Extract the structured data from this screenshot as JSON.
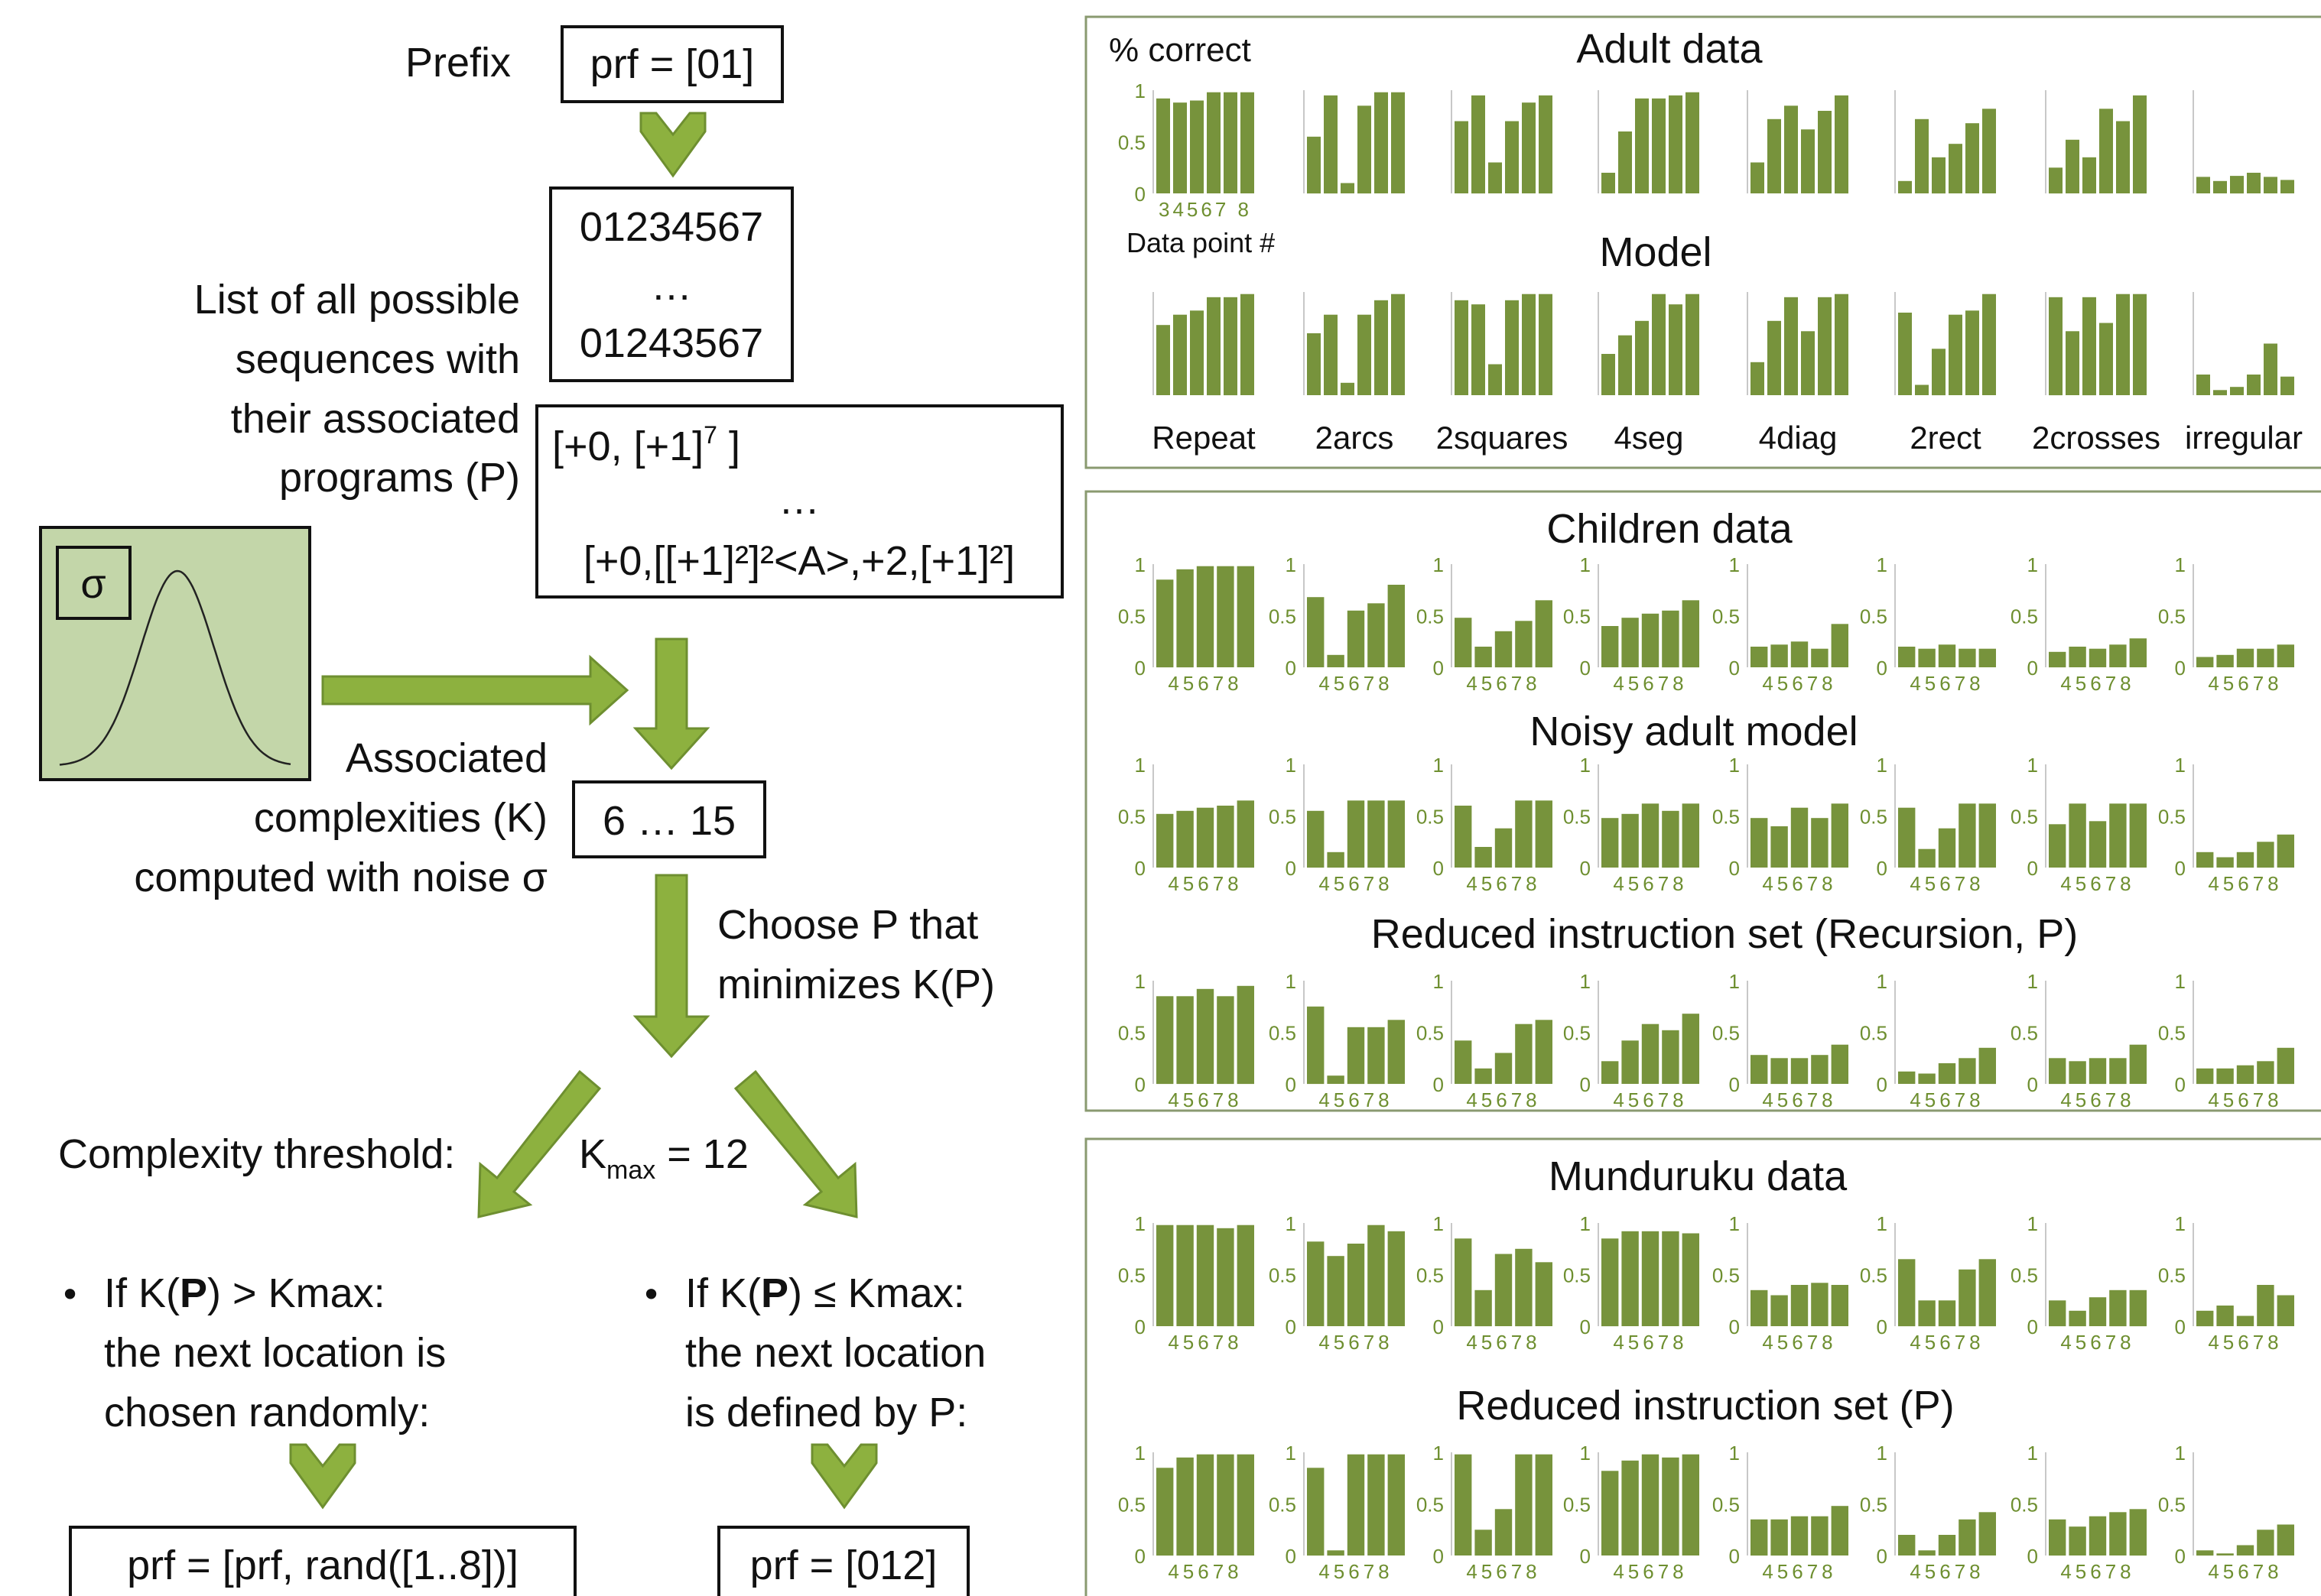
{
  "flow": {
    "prefix_label": "Prefix",
    "prefix_box": "prf = [01]",
    "sequences_box": [
      "01234567",
      "…",
      "01243567"
    ],
    "list_label": [
      "List of all possible",
      "sequences with",
      "their associated",
      "programs (P)"
    ],
    "programs_line1_main": "[+0, [+1]",
    "programs_line1_sup": "7",
    "programs_line1_end": " ]",
    "programs_line2": "…",
    "programs_line3": "[+0,[[+1]²]²<A>,+2,[+1]²]",
    "sigma_label": "σ",
    "complexity_label": [
      "Associated",
      "complexities (K)",
      "computed with noise σ"
    ],
    "complexity_box": "6 … 15",
    "choose_label": [
      "Choose P that",
      "minimizes K(P)"
    ],
    "threshold_label": "Complexity threshold:",
    "kmax_main": "K",
    "kmax_sub": "max",
    "kmax_value": " = 12",
    "left_branch": {
      "bullet": "•",
      "cond_pre": "If K(",
      "cond_bold": "P",
      "cond_post": ") > Kmax:",
      "line2": "the next location is",
      "line3": "chosen randomly:",
      "result": "prf = [prf, rand([1..8])]"
    },
    "right_branch": {
      "bullet": "•",
      "cond_pre": "If K(",
      "cond_bold": "P",
      "cond_post": ") ≤ Kmax:",
      "line2": "the next location",
      "line3": "is defined by P:",
      "result": "prf = [012]"
    }
  },
  "colors": {
    "bar": "#77933c",
    "arrow": "#8db13f",
    "arrow_stroke": "#6e8f30",
    "sigma_bg": "#c3d6a9",
    "frame": "#8a9a70",
    "tick_text": "#6e8f30"
  },
  "panels": {
    "adult": {
      "y_axis_label": "% correct",
      "x_axis_label": "Data point #",
      "x_ticks": "34567 8",
      "y_ticks": [
        "1",
        "0.5",
        "0"
      ],
      "categories": [
        "Repeat",
        "2arcs",
        "2squares",
        "4seg",
        "4diag",
        "2rect",
        "2crosses",
        "irregular"
      ]
    },
    "children_x_ticks": "45678",
    "y_ticks": [
      "1",
      "0.5",
      "0"
    ]
  },
  "chart_data": [
    {
      "type": "bar",
      "title": "Adult data",
      "ylabel": "% correct",
      "xlabel": "Data point #",
      "ylim": [
        0,
        1
      ],
      "x": [
        "3",
        "4",
        "5",
        "6",
        "7",
        "8"
      ],
      "series": [
        {
          "name": "Repeat",
          "values": [
            0.92,
            0.88,
            0.9,
            0.98,
            0.98,
            0.98
          ]
        },
        {
          "name": "2arcs",
          "values": [
            0.55,
            0.95,
            0.1,
            0.85,
            0.98,
            0.98
          ]
        },
        {
          "name": "2squares",
          "values": [
            0.7,
            0.95,
            0.3,
            0.7,
            0.88,
            0.95
          ]
        },
        {
          "name": "4seg",
          "values": [
            0.2,
            0.6,
            0.92,
            0.92,
            0.95,
            0.98
          ]
        },
        {
          "name": "4diag",
          "values": [
            0.3,
            0.72,
            0.85,
            0.62,
            0.8,
            0.95
          ]
        },
        {
          "name": "2rect",
          "values": [
            0.12,
            0.72,
            0.35,
            0.48,
            0.68,
            0.82
          ]
        },
        {
          "name": "2crosses",
          "values": [
            0.25,
            0.52,
            0.35,
            0.82,
            0.7,
            0.95
          ]
        },
        {
          "name": "irregular",
          "values": [
            0.16,
            0.12,
            0.17,
            0.2,
            0.16,
            0.13
          ]
        }
      ]
    },
    {
      "type": "bar",
      "title": "Model",
      "ylim": [
        0,
        1
      ],
      "x": [
        "3",
        "4",
        "5",
        "6",
        "7",
        "8"
      ],
      "series": [
        {
          "name": "Repeat",
          "values": [
            0.68,
            0.78,
            0.82,
            0.95,
            0.95,
            0.98
          ]
        },
        {
          "name": "2arcs",
          "values": [
            0.6,
            0.78,
            0.12,
            0.78,
            0.92,
            0.98
          ]
        },
        {
          "name": "2squares",
          "values": [
            0.92,
            0.88,
            0.3,
            0.92,
            0.98,
            0.98
          ]
        },
        {
          "name": "4seg",
          "values": [
            0.4,
            0.58,
            0.72,
            0.98,
            0.88,
            0.98
          ]
        },
        {
          "name": "4diag",
          "values": [
            0.32,
            0.72,
            0.95,
            0.62,
            0.95,
            0.98
          ]
        },
        {
          "name": "2rect",
          "values": [
            0.8,
            0.1,
            0.45,
            0.78,
            0.82,
            0.98
          ]
        },
        {
          "name": "2crosses",
          "values": [
            0.95,
            0.62,
            0.95,
            0.7,
            0.98,
            0.98
          ]
        },
        {
          "name": "irregular",
          "values": [
            0.2,
            0.05,
            0.08,
            0.2,
            0.5,
            0.18
          ]
        }
      ]
    },
    {
      "type": "bar",
      "title": "Children data",
      "ylim": [
        0,
        1
      ],
      "x": [
        "4",
        "5",
        "6",
        "7",
        "8"
      ],
      "series": [
        {
          "name": "Repeat",
          "values": [
            0.85,
            0.95,
            0.98,
            0.98,
            0.98
          ]
        },
        {
          "name": "2arcs",
          "values": [
            0.68,
            0.12,
            0.55,
            0.62,
            0.8
          ]
        },
        {
          "name": "2squares",
          "values": [
            0.48,
            0.2,
            0.35,
            0.45,
            0.65
          ]
        },
        {
          "name": "4seg",
          "values": [
            0.4,
            0.48,
            0.52,
            0.55,
            0.65
          ]
        },
        {
          "name": "4diag",
          "values": [
            0.2,
            0.22,
            0.25,
            0.18,
            0.42
          ]
        },
        {
          "name": "2rect",
          "values": [
            0.2,
            0.18,
            0.22,
            0.18,
            0.18
          ]
        },
        {
          "name": "2crosses",
          "values": [
            0.15,
            0.2,
            0.18,
            0.22,
            0.28
          ]
        },
        {
          "name": "irregular",
          "values": [
            0.1,
            0.12,
            0.18,
            0.18,
            0.22
          ]
        }
      ]
    },
    {
      "type": "bar",
      "title": "Noisy adult model",
      "ylim": [
        0,
        1
      ],
      "x": [
        "4",
        "5",
        "6",
        "7",
        "8"
      ],
      "series": [
        {
          "name": "Repeat",
          "values": [
            0.52,
            0.55,
            0.58,
            0.6,
            0.65
          ]
        },
        {
          "name": "2arcs",
          "values": [
            0.55,
            0.15,
            0.65,
            0.65,
            0.65
          ]
        },
        {
          "name": "2squares",
          "values": [
            0.6,
            0.2,
            0.38,
            0.65,
            0.65
          ]
        },
        {
          "name": "4seg",
          "values": [
            0.48,
            0.52,
            0.62,
            0.55,
            0.62
          ]
        },
        {
          "name": "4diag",
          "values": [
            0.48,
            0.4,
            0.58,
            0.48,
            0.62
          ]
        },
        {
          "name": "2rect",
          "values": [
            0.58,
            0.18,
            0.38,
            0.62,
            0.62
          ]
        },
        {
          "name": "2crosses",
          "values": [
            0.42,
            0.62,
            0.45,
            0.62,
            0.62
          ]
        },
        {
          "name": "irregular",
          "values": [
            0.15,
            0.1,
            0.15,
            0.25,
            0.32
          ]
        }
      ]
    },
    {
      "type": "bar",
      "title": "Reduced instruction set (Recursion, P)",
      "ylim": [
        0,
        1
      ],
      "x": [
        "4",
        "5",
        "6",
        "7",
        "8"
      ],
      "series": [
        {
          "name": "Repeat",
          "values": [
            0.85,
            0.85,
            0.92,
            0.85,
            0.95
          ]
        },
        {
          "name": "2arcs",
          "values": [
            0.75,
            0.08,
            0.55,
            0.55,
            0.62
          ]
        },
        {
          "name": "2squares",
          "values": [
            0.42,
            0.15,
            0.3,
            0.58,
            0.62
          ]
        },
        {
          "name": "4seg",
          "values": [
            0.22,
            0.42,
            0.58,
            0.52,
            0.68
          ]
        },
        {
          "name": "4diag",
          "values": [
            0.28,
            0.25,
            0.25,
            0.28,
            0.38
          ]
        },
        {
          "name": "2rect",
          "values": [
            0.12,
            0.1,
            0.2,
            0.25,
            0.35
          ]
        },
        {
          "name": "2crosses",
          "values": [
            0.25,
            0.22,
            0.25,
            0.25,
            0.38
          ]
        },
        {
          "name": "irregular",
          "values": [
            0.15,
            0.15,
            0.18,
            0.22,
            0.35
          ]
        }
      ]
    },
    {
      "type": "bar",
      "title": "Munduruku data",
      "ylim": [
        0,
        1
      ],
      "x": [
        "4",
        "5",
        "6",
        "7",
        "8"
      ],
      "series": [
        {
          "name": "Repeat",
          "values": [
            0.98,
            0.98,
            0.98,
            0.95,
            0.98
          ]
        },
        {
          "name": "2arcs",
          "values": [
            0.82,
            0.68,
            0.8,
            0.98,
            0.92
          ]
        },
        {
          "name": "2squares",
          "values": [
            0.85,
            0.35,
            0.7,
            0.75,
            0.62
          ]
        },
        {
          "name": "4seg",
          "values": [
            0.85,
            0.92,
            0.92,
            0.92,
            0.9
          ]
        },
        {
          "name": "4diag",
          "values": [
            0.35,
            0.3,
            0.4,
            0.42,
            0.4
          ]
        },
        {
          "name": "2rect",
          "values": [
            0.65,
            0.25,
            0.25,
            0.55,
            0.65
          ]
        },
        {
          "name": "2crosses",
          "values": [
            0.25,
            0.15,
            0.28,
            0.35,
            0.35
          ]
        },
        {
          "name": "irregular",
          "values": [
            0.15,
            0.2,
            0.1,
            0.4,
            0.3
          ]
        }
      ]
    },
    {
      "type": "bar",
      "title": "Reduced instruction set (P)",
      "ylim": [
        0,
        1
      ],
      "x": [
        "4",
        "5",
        "6",
        "7",
        "8"
      ],
      "series": [
        {
          "name": "Repeat",
          "values": [
            0.85,
            0.95,
            0.98,
            0.98,
            0.98
          ]
        },
        {
          "name": "2arcs",
          "values": [
            0.85,
            0.05,
            0.98,
            0.98,
            0.98
          ]
        },
        {
          "name": "2squares",
          "values": [
            0.98,
            0.25,
            0.45,
            0.98,
            0.98
          ]
        },
        {
          "name": "4seg",
          "values": [
            0.82,
            0.92,
            0.98,
            0.95,
            0.98
          ]
        },
        {
          "name": "4diag",
          "values": [
            0.35,
            0.35,
            0.38,
            0.38,
            0.48
          ]
        },
        {
          "name": "2rect",
          "values": [
            0.2,
            0.05,
            0.2,
            0.35,
            0.42
          ]
        },
        {
          "name": "2crosses",
          "values": [
            0.35,
            0.28,
            0.38,
            0.42,
            0.45
          ]
        },
        {
          "name": "irregular",
          "values": [
            0.05,
            0.02,
            0.1,
            0.25,
            0.3
          ]
        }
      ]
    }
  ]
}
